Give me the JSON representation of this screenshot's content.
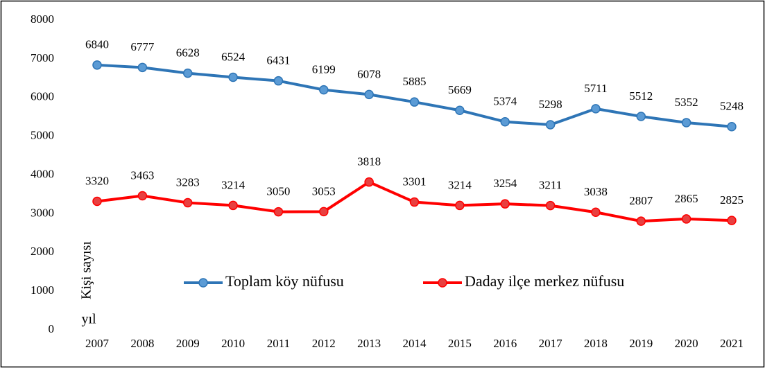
{
  "chart_data": {
    "type": "line",
    "y_label": "Kişi sayısı",
    "x_label": "yıl",
    "categories": [
      "2007",
      "2008",
      "2009",
      "2010",
      "2011",
      "2012",
      "2013",
      "2014",
      "2015",
      "2016",
      "2017",
      "2018",
      "2019",
      "2020",
      "2021"
    ],
    "series": [
      {
        "name": "Toplam köy nüfusu",
        "color": "#2e75b6",
        "marker_color": "#5b9bd5",
        "values": [
          6840,
          6777,
          6628,
          6524,
          6431,
          6199,
          6078,
          5885,
          5669,
          5374,
          5298,
          5711,
          5512,
          5352,
          5248
        ]
      },
      {
        "name": "Daday ilçe merkez nüfusu",
        "color": "#ff0000",
        "marker_color": "#e84040",
        "values": [
          3320,
          3463,
          3283,
          3214,
          3050,
          3053,
          3818,
          3301,
          3214,
          3254,
          3211,
          3038,
          2807,
          2865,
          2825
        ]
      }
    ],
    "ylim": [
      0,
      8000
    ],
    "yticks": [
      0,
      1000,
      2000,
      3000,
      4000,
      5000,
      6000,
      7000,
      8000
    ],
    "grid": false
  }
}
